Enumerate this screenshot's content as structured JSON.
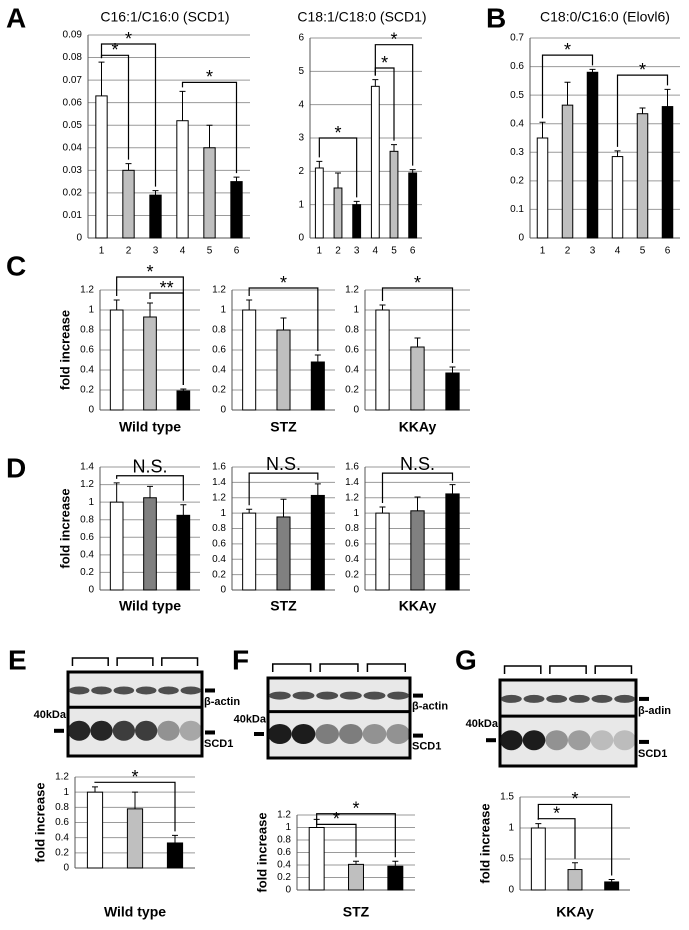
{
  "panel_labels": [
    "A",
    "B",
    "C",
    "D",
    "E",
    "F",
    "G"
  ],
  "chart_data": [
    {
      "type": "bar",
      "title": "C16:1/C16:0 (SCD1)",
      "categories": [
        "1",
        "2",
        "3",
        "4",
        "5",
        "6"
      ],
      "values": [
        0.063,
        0.03,
        0.019,
        0.052,
        0.04,
        0.025
      ],
      "errors": [
        0.015,
        0.003,
        0.002,
        0.013,
        0.01,
        0.002
      ],
      "colors": [
        "#ffffff",
        "#bfbfbf",
        "#000000",
        "#ffffff",
        "#bfbfbf",
        "#000000"
      ],
      "ylim": [
        0,
        0.09
      ],
      "yticks": [
        0,
        0.01,
        0.02,
        0.03,
        0.04,
        0.05,
        0.06,
        0.07,
        0.08,
        0.09
      ],
      "grid": true,
      "annotations": [
        "*",
        "*",
        "*"
      ]
    },
    {
      "type": "bar",
      "title": "C18:1/C18:0 (SCD1)",
      "categories": [
        "1",
        "2",
        "3",
        "4",
        "5",
        "6"
      ],
      "values": [
        2.1,
        1.5,
        1.0,
        4.55,
        2.6,
        1.95
      ],
      "errors": [
        0.2,
        0.45,
        0.1,
        0.2,
        0.2,
        0.1
      ],
      "colors": [
        "#ffffff",
        "#bfbfbf",
        "#000000",
        "#ffffff",
        "#bfbfbf",
        "#000000"
      ],
      "ylim": [
        0,
        6
      ],
      "yticks": [
        0,
        1,
        2,
        3,
        4,
        5,
        6
      ],
      "grid": true,
      "annotations": [
        "*",
        "*",
        "*"
      ]
    },
    {
      "type": "bar",
      "title": "C18:0/C16:0 (Elovl6)",
      "categories": [
        "1",
        "2",
        "3",
        "4",
        "5",
        "6"
      ],
      "values": [
        0.35,
        0.465,
        0.58,
        0.285,
        0.435,
        0.46
      ],
      "errors": [
        0.055,
        0.08,
        0.01,
        0.02,
        0.02,
        0.06
      ],
      "colors": [
        "#ffffff",
        "#bfbfbf",
        "#000000",
        "#ffffff",
        "#bfbfbf",
        "#000000"
      ],
      "ylim": [
        0,
        0.7
      ],
      "yticks": [
        0,
        0.1,
        0.2,
        0.3,
        0.4,
        0.5,
        0.6,
        0.7
      ],
      "grid": true,
      "annotations": [
        "*",
        "*"
      ]
    },
    {
      "type": "bar",
      "ylabel": "fold increase",
      "xlabel": "Wild type",
      "values": [
        1,
        0.93,
        0.19
      ],
      "errors": [
        0.1,
        0.14,
        0.02
      ],
      "colors": [
        "#ffffff",
        "#bfbfbf",
        "#000000"
      ],
      "ylim": [
        0,
        1.2
      ],
      "yticks": [
        0,
        0.2,
        0.4,
        0.6,
        0.8,
        1,
        1.2
      ],
      "grid": true,
      "annotations": [
        "*",
        "**"
      ]
    },
    {
      "type": "bar",
      "xlabel": "STZ",
      "values": [
        1,
        0.8,
        0.48
      ],
      "errors": [
        0.1,
        0.12,
        0.07
      ],
      "colors": [
        "#ffffff",
        "#bfbfbf",
        "#000000"
      ],
      "ylim": [
        0,
        1.2
      ],
      "yticks": [
        0,
        0.2,
        0.4,
        0.6,
        0.8,
        1,
        1.2
      ],
      "grid": true,
      "annotations": [
        "*"
      ]
    },
    {
      "type": "bar",
      "xlabel": "KKAy",
      "values": [
        1,
        0.63,
        0.37
      ],
      "errors": [
        0.05,
        0.09,
        0.06
      ],
      "colors": [
        "#ffffff",
        "#bfbfbf",
        "#000000"
      ],
      "ylim": [
        0,
        1.2
      ],
      "yticks": [
        0,
        0.2,
        0.4,
        0.6,
        0.8,
        1,
        1.2
      ],
      "grid": true,
      "annotations": [
        "*"
      ]
    },
    {
      "type": "bar",
      "ylabel": "fold increase",
      "xlabel": "Wild type",
      "values": [
        1,
        1.05,
        0.85
      ],
      "errors": [
        0.22,
        0.13,
        0.12
      ],
      "colors": [
        "#ffffff",
        "#808080",
        "#000000"
      ],
      "ylim": [
        0,
        1.4
      ],
      "yticks": [
        0,
        0.2,
        0.4,
        0.6,
        0.8,
        1,
        1.2,
        1.4
      ],
      "grid": true,
      "annotations": [
        "N.S."
      ]
    },
    {
      "type": "bar",
      "xlabel": "STZ",
      "values": [
        1,
        0.95,
        1.23
      ],
      "errors": [
        0.05,
        0.23,
        0.15
      ],
      "colors": [
        "#ffffff",
        "#808080",
        "#000000"
      ],
      "ylim": [
        0,
        1.6
      ],
      "yticks": [
        0,
        0.2,
        0.4,
        0.6,
        0.8,
        1,
        1.2,
        1.4,
        1.6
      ],
      "grid": true,
      "annotations": [
        "N.S."
      ]
    },
    {
      "type": "bar",
      "xlabel": "KKAy",
      "values": [
        1,
        1.03,
        1.25
      ],
      "errors": [
        0.08,
        0.18,
        0.12
      ],
      "colors": [
        "#ffffff",
        "#808080",
        "#000000"
      ],
      "ylim": [
        0,
        1.6
      ],
      "yticks": [
        0,
        0.2,
        0.4,
        0.6,
        0.8,
        1,
        1.2,
        1.4,
        1.6
      ],
      "grid": true,
      "annotations": [
        "N.S."
      ]
    },
    {
      "type": "bar",
      "ylabel": "fold increase",
      "xlabel": "Wild type",
      "values": [
        1,
        0.78,
        0.33
      ],
      "errors": [
        0.07,
        0.22,
        0.1
      ],
      "colors": [
        "#ffffff",
        "#bfbfbf",
        "#000000"
      ],
      "ylim": [
        0,
        1.2
      ],
      "yticks": [
        0,
        0.2,
        0.4,
        0.6,
        0.8,
        1,
        1.2
      ],
      "grid": true,
      "annotations": [
        "*"
      ],
      "blot": {
        "top": "β-actin",
        "bottom": "SCD1",
        "marker": "40kDa"
      }
    },
    {
      "type": "bar",
      "ylabel": "fold increase",
      "xlabel": "STZ",
      "values": [
        1,
        0.41,
        0.38
      ],
      "errors": [
        0.13,
        0.05,
        0.08
      ],
      "colors": [
        "#ffffff",
        "#bfbfbf",
        "#000000"
      ],
      "ylim": [
        0,
        1.2
      ],
      "yticks": [
        0,
        0.2,
        0.4,
        0.6,
        0.8,
        1,
        1.2
      ],
      "grid": true,
      "annotations": [
        "*",
        "*"
      ],
      "blot": {
        "top": "β-actin",
        "bottom": "SCD1",
        "marker": "40kDa"
      }
    },
    {
      "type": "bar",
      "ylabel": "fold increase",
      "xlabel": "KKAy",
      "values": [
        1,
        0.33,
        0.13
      ],
      "errors": [
        0.07,
        0.11,
        0.04
      ],
      "colors": [
        "#ffffff",
        "#bfbfbf",
        "#000000"
      ],
      "ylim": [
        0,
        1.5
      ],
      "yticks": [
        0,
        0.5,
        1,
        1.5
      ],
      "grid": true,
      "annotations": [
        "*",
        "*"
      ],
      "blot": {
        "top": "β-adin",
        "bottom": "SCD1",
        "marker": "40kDa"
      }
    }
  ]
}
